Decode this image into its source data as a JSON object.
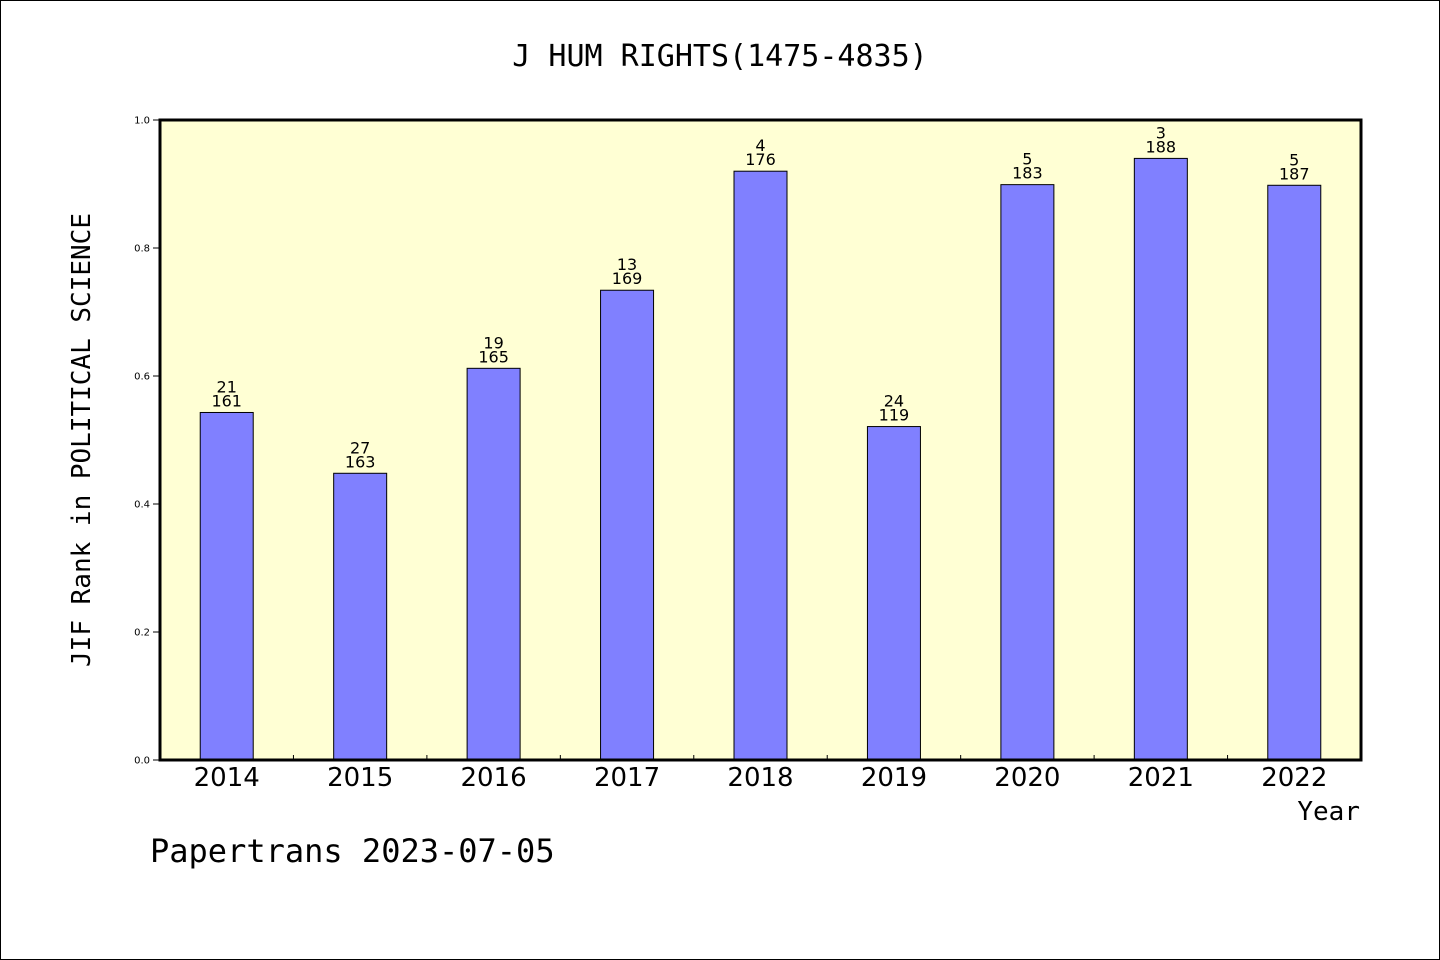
{
  "chart_data": {
    "type": "bar",
    "title": "J HUM RIGHTS(1475-4835)",
    "xlabel": "Year",
    "ylabel": "JIF Rank in POLITICAL SCIENCE",
    "ylim": [
      0,
      1.0
    ],
    "yticks": [
      "0.0",
      "0.2",
      "0.4",
      "0.6",
      "0.8",
      "1.0"
    ],
    "categories": [
      "2014",
      "2015",
      "2016",
      "2017",
      "2018",
      "2019",
      "2020",
      "2021",
      "2022"
    ],
    "values": [
      0.543,
      0.448,
      0.612,
      0.734,
      0.92,
      0.521,
      0.899,
      0.94,
      0.898
    ],
    "rank": [
      "21",
      "27",
      "19",
      "13",
      "4",
      "24",
      "5",
      "3",
      "5"
    ],
    "total": [
      "161",
      "163",
      "165",
      "169",
      "176",
      "119",
      "183",
      "188",
      "187"
    ],
    "bar_color": "#8080ff",
    "background_color": "#ffffd4",
    "grid": false
  },
  "footer": {
    "text": "Papertrans 2023-07-05"
  }
}
